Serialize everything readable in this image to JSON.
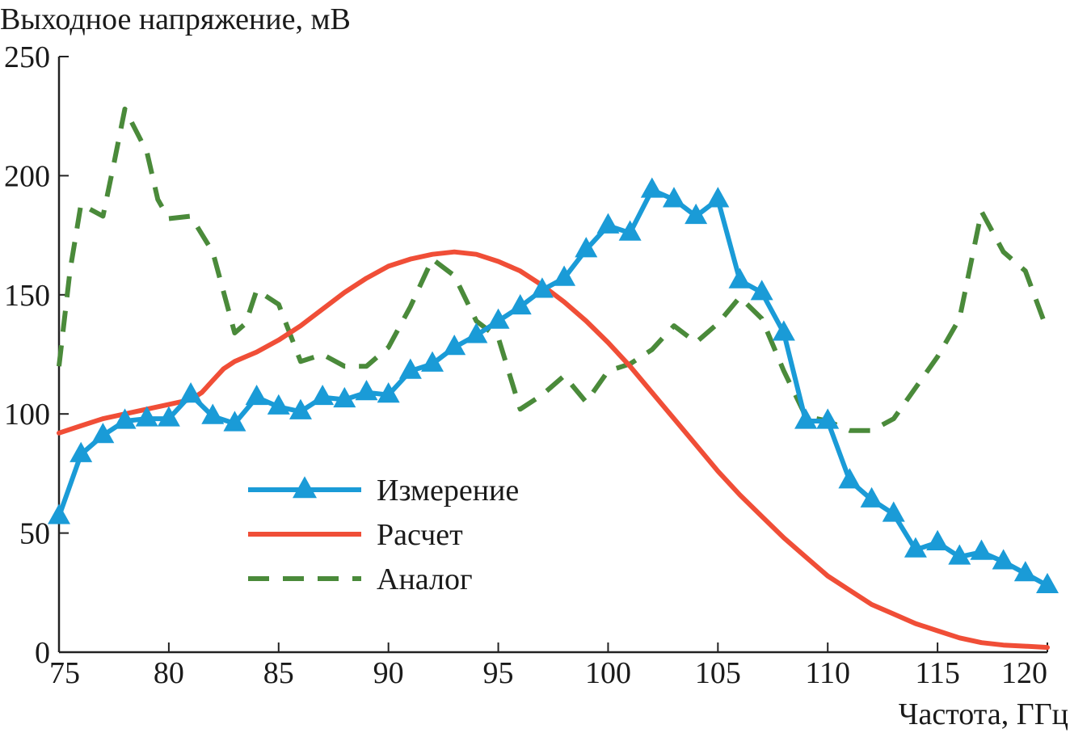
{
  "chart_data": {
    "type": "line",
    "title": "",
    "ylabel": "Выходное напряжение, мВ",
    "xlabel": "Частота, ГГц",
    "xlim": [
      75,
      120
    ],
    "ylim": [
      0,
      250
    ],
    "xticks": [
      75,
      80,
      85,
      90,
      95,
      100,
      105,
      110,
      115,
      120
    ],
    "yticks": [
      0,
      50,
      100,
      150,
      200,
      250
    ],
    "grid": false,
    "legend_position": "center-left",
    "series": [
      {
        "name": "Измерение",
        "color": "#1a9bd7",
        "style": "solid-triangles",
        "x": [
          75,
          76,
          77,
          78,
          79,
          80,
          81,
          82,
          83,
          84,
          85,
          86,
          87,
          88,
          89,
          90,
          91,
          92,
          93,
          94,
          95,
          96,
          97,
          98,
          99,
          100,
          101,
          102,
          103,
          104,
          105,
          106,
          107,
          108,
          109,
          110,
          111,
          112,
          113,
          114,
          115,
          116,
          117,
          118,
          119,
          120
        ],
        "y": [
          57,
          83,
          91,
          97,
          98,
          98,
          108,
          99,
          96,
          107,
          103,
          101,
          107,
          106,
          109,
          108,
          118,
          121,
          128,
          133,
          139,
          145,
          152,
          157,
          169,
          179,
          176,
          194,
          190,
          183,
          190,
          156,
          151,
          134,
          97,
          97,
          72,
          64,
          58,
          43,
          46,
          40,
          42,
          38,
          33,
          28
        ]
      },
      {
        "name": "Расчет",
        "color": "#f04e37",
        "style": "solid",
        "x": [
          75,
          76,
          77,
          78,
          79,
          80,
          81,
          81.5,
          82,
          82.5,
          83,
          83.5,
          84,
          85,
          86,
          87,
          88,
          89,
          90,
          91,
          92,
          93,
          94,
          95,
          96,
          97,
          98,
          99,
          100,
          101,
          102,
          103,
          104,
          105,
          106,
          107,
          108,
          109,
          110,
          111,
          112,
          113,
          114,
          115,
          116,
          117,
          118,
          119,
          120
        ],
        "y": [
          92,
          95,
          98,
          100,
          102,
          104,
          106,
          109,
          114,
          119,
          122,
          124,
          126,
          131,
          137,
          144,
          151,
          157,
          162,
          165,
          167,
          168,
          167,
          164,
          160,
          154,
          147,
          139,
          130,
          120,
          109,
          98,
          87,
          76,
          66,
          57,
          48,
          40,
          32,
          26,
          20,
          16,
          12,
          9,
          6,
          4,
          3,
          2.5,
          2
        ]
      },
      {
        "name": "Аналог",
        "color": "#4a8a3a",
        "style": "dashed",
        "x": [
          75,
          75.5,
          76,
          77,
          77.5,
          78,
          79,
          79.5,
          80,
          81,
          82,
          83,
          83.5,
          84,
          85,
          86,
          87,
          88,
          89,
          90,
          91,
          92,
          93,
          94,
          95,
          96,
          97,
          98,
          99,
          100,
          101,
          102,
          103,
          104,
          105,
          106,
          107,
          108,
          109,
          110,
          111,
          112,
          113,
          114,
          115,
          116,
          117,
          118,
          119,
          120
        ],
        "y": [
          120,
          160,
          188,
          183,
          205,
          228,
          210,
          190,
          182,
          183,
          168,
          134,
          138,
          152,
          146,
          122,
          125,
          120,
          120,
          128,
          145,
          165,
          158,
          139,
          132,
          102,
          108,
          116,
          105,
          118,
          121,
          127,
          137,
          130,
          138,
          149,
          140,
          118,
          99,
          97,
          93,
          93,
          98,
          111,
          124,
          140,
          185,
          168,
          160,
          135
        ]
      }
    ]
  }
}
